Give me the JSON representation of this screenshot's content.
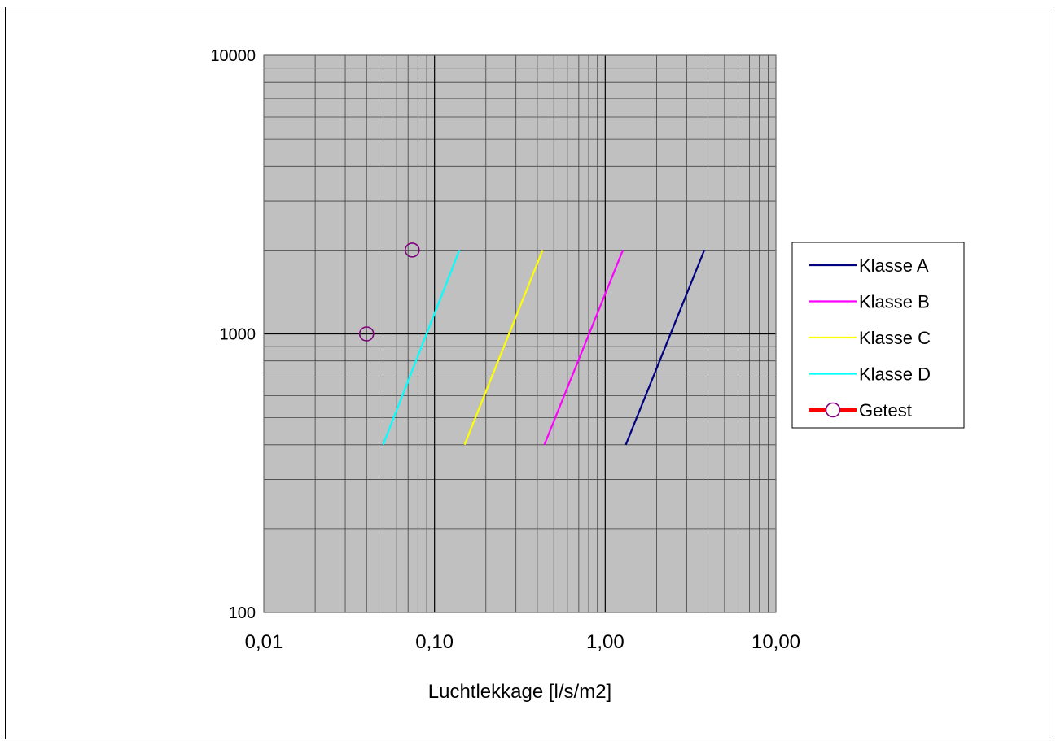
{
  "chart_data": {
    "type": "line",
    "title": "",
    "xlabel": "Luchtlekkage [l/s/m2]",
    "ylabel": "",
    "x_scale": "log",
    "y_scale": "log",
    "xlim": [
      0.01,
      10
    ],
    "ylim": [
      100,
      10000
    ],
    "grid": true,
    "plot_background": "#c0c0c0",
    "x_ticks": [
      {
        "value": 0.01,
        "label": "0,01"
      },
      {
        "value": 0.1,
        "label": "0,10"
      },
      {
        "value": 1,
        "label": "1,00"
      },
      {
        "value": 10,
        "label": "10,00"
      }
    ],
    "y_ticks": [
      {
        "value": 100,
        "label": "100"
      },
      {
        "value": 1000,
        "label": "1000"
      },
      {
        "value": 10000,
        "label": "10000"
      }
    ],
    "legend_position": "right",
    "series": [
      {
        "name": "Klasse A",
        "color": "#000080",
        "type": "line",
        "x": [
          1.32,
          3.81
        ],
        "y": [
          400,
          2000
        ]
      },
      {
        "name": "Klasse B",
        "color": "#ff00ff",
        "type": "line",
        "x": [
          0.44,
          1.27
        ],
        "y": [
          400,
          2000
        ]
      },
      {
        "name": "Klasse C",
        "color": "#ffff00",
        "type": "line",
        "x": [
          0.15,
          0.43
        ],
        "y": [
          400,
          2000
        ]
      },
      {
        "name": "Klasse D",
        "color": "#00ffff",
        "type": "line",
        "x": [
          0.05,
          0.14
        ],
        "y": [
          400,
          2000
        ]
      },
      {
        "name": "Getest",
        "color": "#800080",
        "legend_line_color": "#ff0000",
        "type": "scatter",
        "marker": "circle-open",
        "x": [
          0.04,
          0.074
        ],
        "y": [
          1000,
          2000
        ]
      }
    ]
  }
}
